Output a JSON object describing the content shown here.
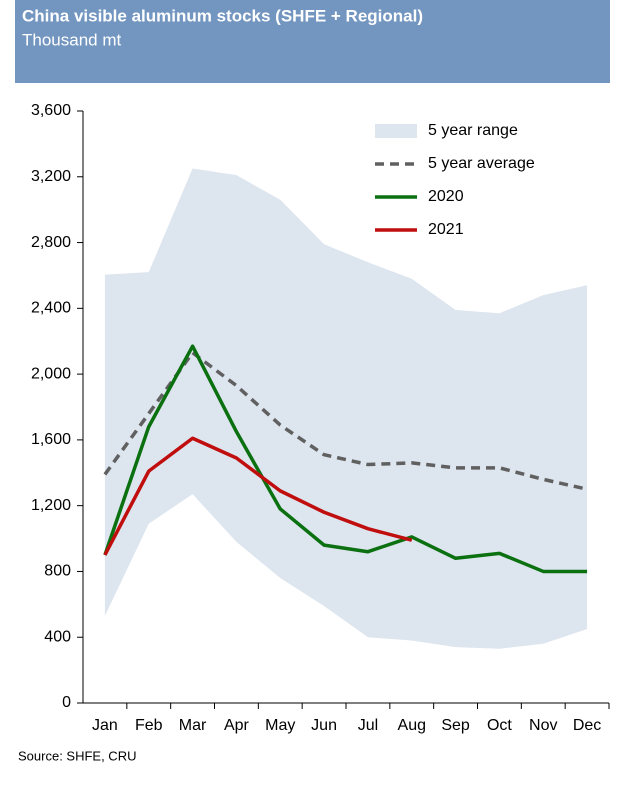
{
  "chart_data": {
    "type": "line",
    "title": "China visible aluminum stocks (SHFE + Regional)",
    "subtitle": "Thousand mt",
    "source": "Source:  SHFE, CRU",
    "categories": [
      "Jan",
      "Feb",
      "Mar",
      "Apr",
      "May",
      "Jun",
      "Jul",
      "Aug",
      "Sep",
      "Oct",
      "Nov",
      "Dec"
    ],
    "ylim": [
      0,
      3600
    ],
    "yticks": [
      0,
      400,
      800,
      {
        "value": 1200,
        "label": "1,200"
      },
      {
        "value": 1600,
        "label": "1,600"
      },
      {
        "value": 2000,
        "label": "2,000"
      },
      {
        "value": 2400,
        "label": "2,400"
      },
      {
        "value": 2800,
        "label": "2,800"
      },
      {
        "value": 3200,
        "label": "3,200"
      },
      {
        "value": 3600,
        "label": "3,600"
      }
    ],
    "grid": false,
    "legend": "top-right",
    "series": [
      {
        "name": "5 year range",
        "kind": "range",
        "color": "#dde5ef",
        "low": [
          530,
          1090,
          1270,
          980,
          760,
          590,
          400,
          380,
          340,
          330,
          360,
          450
        ],
        "high": [
          2605,
          2620,
          3250,
          3210,
          3060,
          2790,
          2680,
          2580,
          2390,
          2370,
          2480,
          2540
        ]
      },
      {
        "name": "5 year average",
        "kind": "dashed",
        "color": "#606060",
        "values": [
          1390,
          1760,
          2130,
          1930,
          1690,
          1510,
          1450,
          1460,
          1430,
          1430,
          1360,
          1300
        ]
      },
      {
        "name": "2020",
        "kind": "solid",
        "color": "#0a7010",
        "values": [
          900,
          1680,
          2170,
          1650,
          1180,
          960,
          920,
          1010,
          880,
          910,
          800,
          800
        ]
      },
      {
        "name": "2021",
        "kind": "solid",
        "color": "#c00d0d",
        "values": [
          900,
          1410,
          1610,
          1490,
          1290,
          1160,
          1060,
          990,
          null,
          null,
          null,
          null
        ]
      }
    ]
  }
}
